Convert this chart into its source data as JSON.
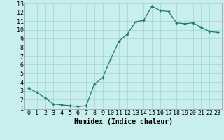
{
  "x": [
    0,
    1,
    2,
    3,
    4,
    5,
    6,
    7,
    8,
    9,
    10,
    11,
    12,
    13,
    14,
    15,
    16,
    17,
    18,
    19,
    20,
    21,
    22,
    23
  ],
  "y": [
    3.3,
    2.8,
    2.2,
    1.5,
    1.4,
    1.3,
    1.2,
    1.3,
    3.8,
    4.5,
    6.7,
    8.7,
    9.5,
    10.9,
    11.1,
    12.7,
    12.2,
    12.1,
    10.8,
    10.7,
    10.8,
    10.3,
    9.8,
    9.7
  ],
  "xlabel": "Humidex (Indice chaleur)",
  "ylim": [
    1,
    13
  ],
  "xlim": [
    -0.5,
    23.5
  ],
  "yticks": [
    1,
    2,
    3,
    4,
    5,
    6,
    7,
    8,
    9,
    10,
    11,
    12,
    13
  ],
  "xticks": [
    0,
    1,
    2,
    3,
    4,
    5,
    6,
    7,
    8,
    9,
    10,
    11,
    12,
    13,
    14,
    15,
    16,
    17,
    18,
    19,
    20,
    21,
    22,
    23
  ],
  "line_color": "#1a7a6e",
  "marker": "+",
  "bg_color": "#c8eeee",
  "grid_color": "#9fd4d4",
  "label_fontsize": 7,
  "tick_fontsize": 6
}
